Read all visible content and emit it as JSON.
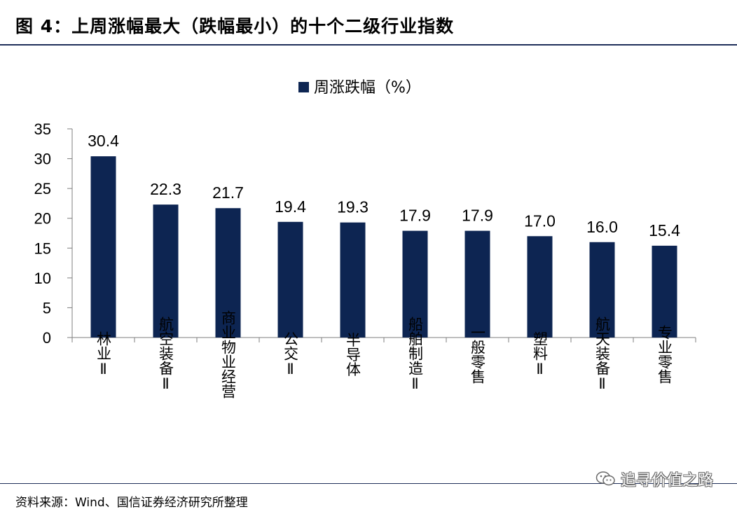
{
  "figure": {
    "title": "图 4：上周涨幅最大（跌幅最小）的十个二级行业指数",
    "source": "资料来源：Wind、国信证券经济研究所整理",
    "watermark": "追寻价值之路",
    "watermark_icon": "wechat-icon"
  },
  "colors": {
    "bar": "#0d2552",
    "axis": "#7f7f7f",
    "rule": "#1f2f5a"
  },
  "chart_data": {
    "type": "bar",
    "categories": [
      "林业Ⅱ",
      "航空装备Ⅱ",
      "商业物业经营",
      "公交Ⅱ",
      "半导体",
      "船舶制造Ⅱ",
      "一般零售",
      "塑料Ⅱ",
      "航天装备Ⅱ",
      "专业零售"
    ],
    "series": [
      {
        "name": "周涨跌幅（%）",
        "values": [
          30.4,
          22.3,
          21.7,
          19.4,
          19.3,
          17.9,
          17.9,
          17.0,
          16.0,
          15.4
        ]
      }
    ],
    "data_labels": [
      "30.4",
      "22.3",
      "21.7",
      "19.4",
      "19.3",
      "17.9",
      "17.9",
      "17.0",
      "16.0",
      "15.4"
    ],
    "ylim": [
      0,
      35
    ],
    "yticks": [
      0,
      5,
      10,
      15,
      20,
      25,
      30,
      35
    ],
    "grid": false,
    "legend_position": "top-center",
    "category_label_orientation": "vertical"
  }
}
